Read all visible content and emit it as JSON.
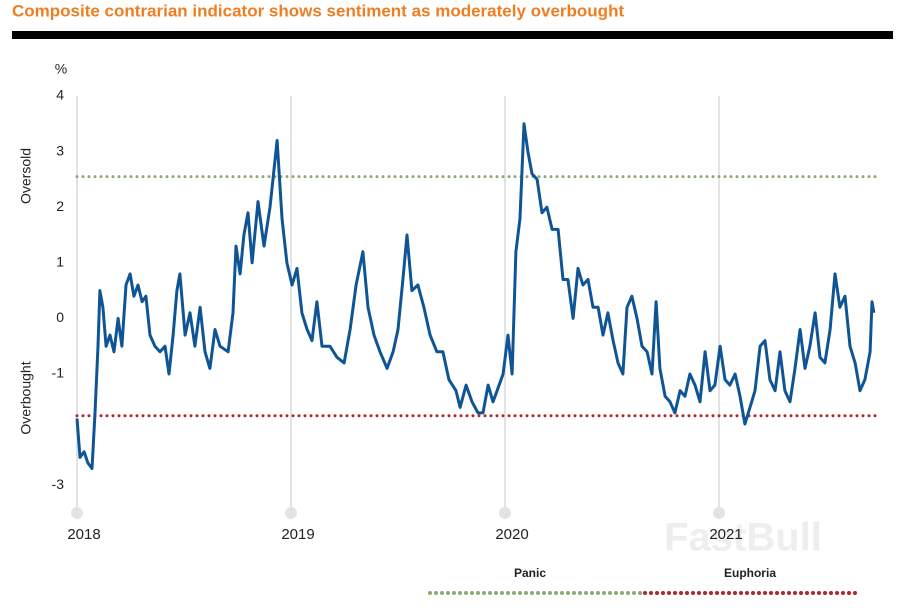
{
  "chart_data": {
    "type": "line",
    "title": "Composite contrarian indicator shows sentiment as moderately overbought",
    "unit_label": "%",
    "upper_label": "Oversold",
    "lower_label": "Overbought",
    "watermark": "FastBull",
    "xlim": [
      2018,
      2021.75
    ],
    "xticks": [
      2018,
      2019,
      2020,
      2021
    ],
    "ylim": [
      -3.5,
      4
    ],
    "yticks": [
      -3,
      -1,
      0,
      1,
      2,
      3,
      4
    ],
    "grid": true,
    "x": [
      2018.0,
      2018.014,
      2018.033,
      2018.051,
      2018.07,
      2018.084,
      2018.098,
      2018.107,
      2018.121,
      2018.136,
      2018.154,
      2018.173,
      2018.192,
      2018.21,
      2018.229,
      2018.248,
      2018.266,
      2018.285,
      2018.304,
      2018.322,
      2018.341,
      2018.364,
      2018.388,
      2018.411,
      2018.43,
      2018.449,
      2018.467,
      2018.481,
      2018.505,
      2018.528,
      2018.551,
      2018.575,
      2018.598,
      2018.621,
      2018.645,
      2018.668,
      2018.706,
      2018.729,
      2018.743,
      2018.762,
      2018.78,
      2018.799,
      2018.818,
      2018.846,
      2018.874,
      2018.902,
      2018.935,
      2018.958,
      2018.981,
      2019.005,
      2019.028,
      2019.051,
      2019.075,
      2019.098,
      2019.121,
      2019.145,
      2019.182,
      2019.215,
      2019.248,
      2019.276,
      2019.304,
      2019.336,
      2019.36,
      2019.388,
      2019.416,
      2019.449,
      2019.477,
      2019.5,
      2019.523,
      2019.542,
      2019.565,
      2019.593,
      2019.621,
      2019.65,
      2019.682,
      2019.71,
      2019.738,
      2019.771,
      2019.79,
      2019.818,
      2019.846,
      2019.874,
      2019.897,
      2019.921,
      2019.944,
      2019.963,
      2019.991,
      2020.014,
      2020.033,
      2020.051,
      2020.07,
      2020.089,
      2020.107,
      2020.126,
      2020.15,
      2020.173,
      2020.196,
      2020.22,
      2020.248,
      2020.271,
      2020.294,
      2020.318,
      2020.341,
      2020.364,
      2020.388,
      2020.411,
      2020.435,
      2020.458,
      2020.481,
      2020.505,
      2020.528,
      2020.551,
      2020.57,
      2020.593,
      2020.617,
      2020.64,
      2020.664,
      2020.687,
      2020.706,
      2020.724,
      2020.748,
      2020.771,
      2020.794,
      2020.818,
      2020.841,
      2020.864,
      2020.888,
      2020.911,
      2020.935,
      2020.958,
      2020.981,
      2021.005,
      2021.028,
      2021.051,
      2021.075,
      2021.098,
      2021.121,
      2021.145,
      2021.168,
      2021.192,
      2021.215,
      2021.238,
      2021.262,
      2021.285,
      2021.308,
      2021.332,
      2021.355,
      2021.379,
      2021.402,
      2021.425,
      2021.449,
      2021.472,
      2021.495,
      2021.519,
      2021.542,
      2021.565,
      2021.589,
      2021.612,
      2021.636,
      2021.659,
      2021.682,
      2021.706,
      2021.715,
      2021.724
    ],
    "series": [
      {
        "color": "#0f5596",
        "values": [
          -1.8,
          -2.5,
          -2.4,
          -2.6,
          -2.7,
          -1.7,
          -0.5,
          0.5,
          0.2,
          -0.5,
          -0.3,
          -0.6,
          0.0,
          -0.5,
          0.6,
          0.8,
          0.4,
          0.6,
          0.3,
          0.4,
          -0.3,
          -0.5,
          -0.6,
          -0.5,
          -1.0,
          -0.3,
          0.5,
          0.8,
          -0.3,
          0.1,
          -0.5,
          0.2,
          -0.6,
          -0.9,
          -0.2,
          -0.5,
          -0.6,
          0.1,
          1.3,
          0.8,
          1.5,
          1.9,
          1.0,
          2.1,
          1.3,
          2.0,
          3.2,
          1.8,
          1.0,
          0.6,
          0.9,
          0.1,
          -0.2,
          -0.4,
          0.3,
          -0.5,
          -0.5,
          -0.7,
          -0.8,
          -0.2,
          0.6,
          1.2,
          0.2,
          -0.3,
          -0.6,
          -0.9,
          -0.6,
          -0.2,
          0.7,
          1.5,
          0.5,
          0.6,
          0.2,
          -0.3,
          -0.6,
          -0.6,
          -1.1,
          -1.3,
          -1.6,
          -1.2,
          -1.5,
          -1.7,
          -1.7,
          -1.2,
          -1.5,
          -1.3,
          -1.0,
          -0.3,
          -1.0,
          1.2,
          1.8,
          3.5,
          3.0,
          2.6,
          2.5,
          1.9,
          2.0,
          1.6,
          1.6,
          0.7,
          0.7,
          0.0,
          0.9,
          0.6,
          0.7,
          0.2,
          0.2,
          -0.3,
          0.1,
          -0.4,
          -0.8,
          -1.0,
          0.2,
          0.4,
          0.0,
          -0.5,
          -0.6,
          -1.0,
          0.3,
          -0.9,
          -1.4,
          -1.5,
          -1.7,
          -1.3,
          -1.4,
          -1.0,
          -1.2,
          -1.5,
          -0.6,
          -1.3,
          -1.2,
          -0.5,
          -1.1,
          -1.2,
          -1.0,
          -1.4,
          -1.9,
          -1.6,
          -1.3,
          -0.5,
          -0.4,
          -1.1,
          -1.3,
          -0.6,
          -1.3,
          -1.5,
          -0.9,
          -0.2,
          -0.9,
          -0.5,
          0.1,
          -0.7,
          -0.8,
          -0.2,
          0.8,
          0.2,
          0.4,
          -0.5,
          -0.8,
          -1.3,
          -1.1,
          -0.6,
          0.3,
          0.1
        ]
      }
    ],
    "reference_lines": [
      {
        "label": "Panic",
        "value": 2.55,
        "color": "#8aab72"
      },
      {
        "label": "Euphoria",
        "value": -1.75,
        "color": "#b3262a"
      }
    ]
  }
}
